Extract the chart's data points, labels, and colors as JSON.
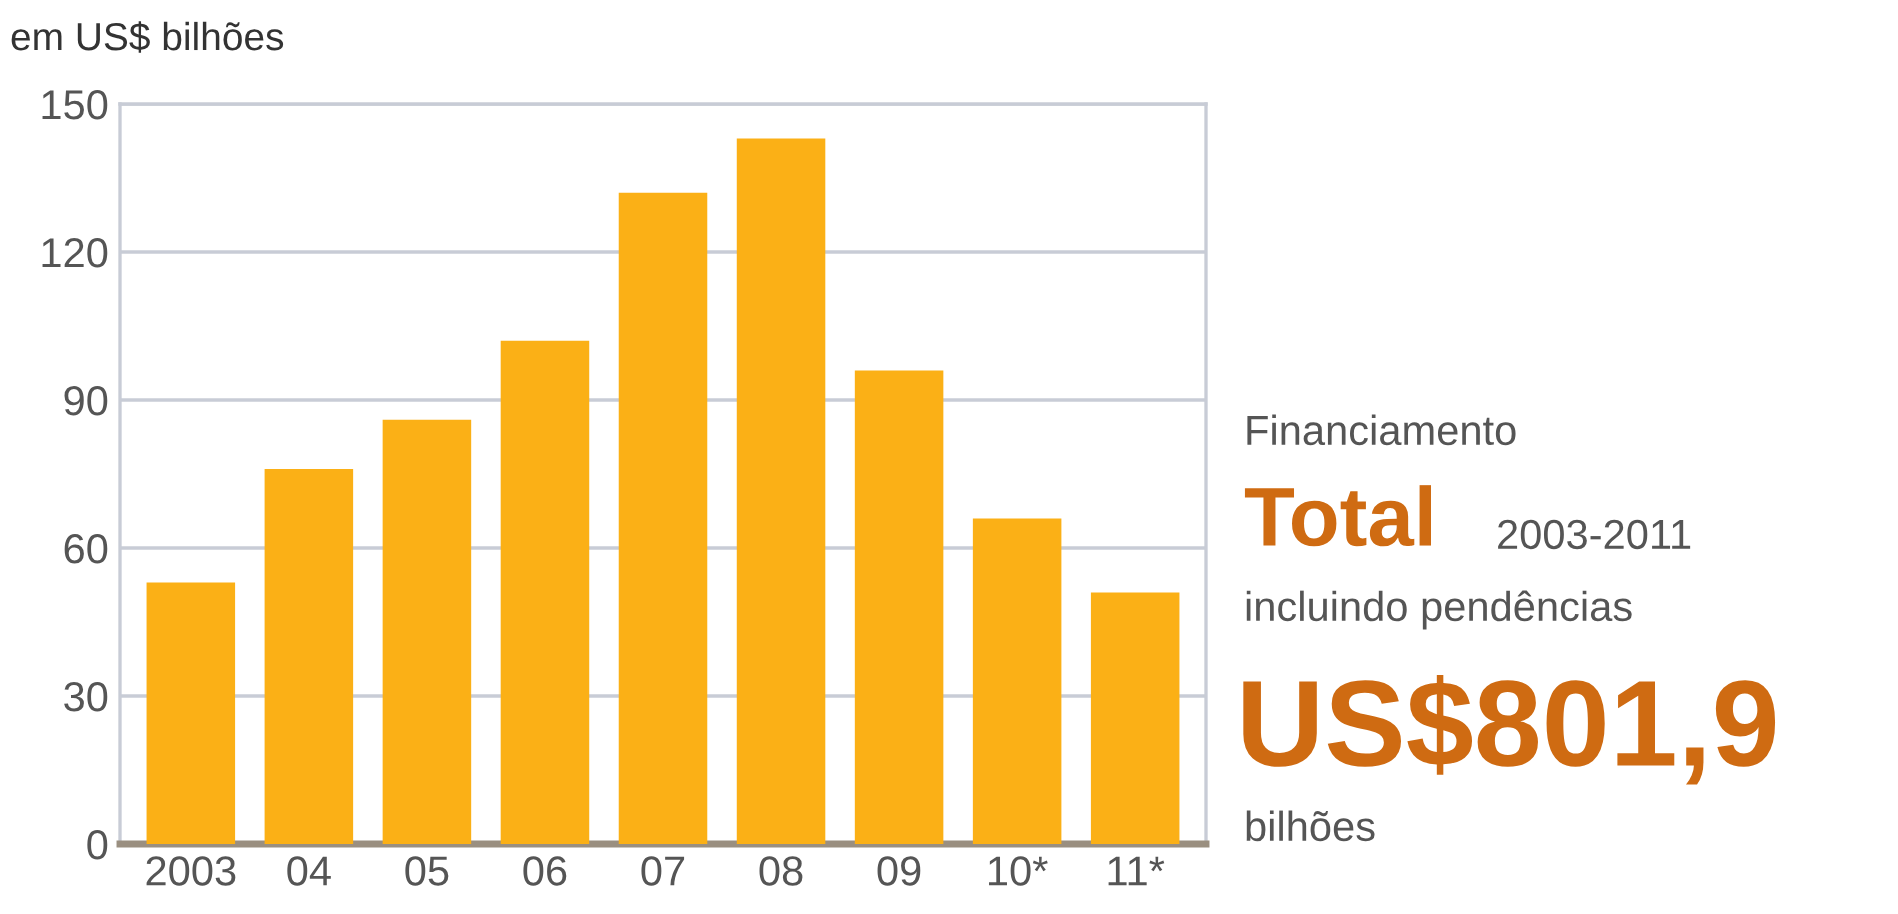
{
  "chart_data": {
    "type": "bar",
    "ylabel": "em US$ bilhões",
    "categories": [
      "2003",
      "04",
      "05",
      "06",
      "07",
      "08",
      "09",
      "10*",
      "11*"
    ],
    "values": [
      53,
      76,
      86,
      102,
      132,
      143,
      96,
      66,
      51
    ],
    "color": "#fbb016",
    "ylim": [
      0,
      150
    ],
    "yticks": [
      0,
      30,
      60,
      90,
      120,
      150
    ],
    "grid": "y",
    "annotations": [
      "Financiamento",
      "Total",
      "2003-2011",
      "incluindo pendências",
      "US$801,9",
      "bilhões"
    ]
  }
}
